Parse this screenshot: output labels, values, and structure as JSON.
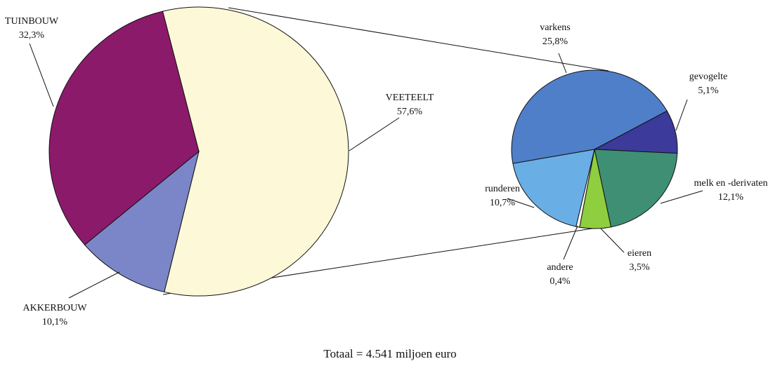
{
  "chart_data": [
    {
      "type": "pie",
      "categories": [
        "VEETEELT",
        "AKKERBOUW",
        "TUINBOUW"
      ],
      "values": [
        57.6,
        10.1,
        32.3
      ],
      "value_labels": [
        "57,6%",
        "10,1%",
        "32,3%"
      ],
      "colors": [
        "#fdf8d8",
        "#7b86c8",
        "#8b1a6b"
      ]
    },
    {
      "type": "pie",
      "categories": [
        "gevogelte",
        "melk en -derivaten",
        "eieren",
        "andere",
        "runderen",
        "varkens"
      ],
      "values": [
        5.1,
        12.1,
        3.5,
        0.4,
        10.7,
        25.8
      ],
      "value_labels": [
        "5,1%",
        "12,1%",
        "3,5%",
        "0,4%",
        "10,7%",
        "25,8%"
      ],
      "colors": [
        "#3c3a9a",
        "#3f8f74",
        "#8fce3e",
        "#ffffff",
        "#6aaee6",
        "#4f7fc9"
      ]
    }
  ],
  "footer": "Totaal = 4.541 miljoen euro"
}
